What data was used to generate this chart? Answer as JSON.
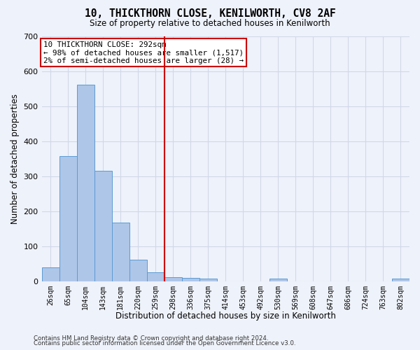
{
  "title": "10, THICKTHORN CLOSE, KENILWORTH, CV8 2AF",
  "subtitle": "Size of property relative to detached houses in Kenilworth",
  "xlabel": "Distribution of detached houses by size in Kenilworth",
  "ylabel": "Number of detached properties",
  "footer_line1": "Contains HM Land Registry data © Crown copyright and database right 2024.",
  "footer_line2": "Contains public sector information licensed under the Open Government Licence v3.0.",
  "bar_labels": [
    "26sqm",
    "65sqm",
    "104sqm",
    "143sqm",
    "181sqm",
    "220sqm",
    "259sqm",
    "298sqm",
    "336sqm",
    "375sqm",
    "414sqm",
    "453sqm",
    "492sqm",
    "530sqm",
    "569sqm",
    "608sqm",
    "647sqm",
    "686sqm",
    "724sqm",
    "763sqm",
    "802sqm"
  ],
  "bar_values": [
    40,
    358,
    562,
    315,
    168,
    62,
    25,
    12,
    10,
    8,
    0,
    0,
    0,
    7,
    0,
    0,
    0,
    0,
    0,
    0,
    7
  ],
  "bar_color": "#aec6e8",
  "bar_edge_color": "#5a9bd4",
  "grid_color": "#d0d8e8",
  "background_color": "#eef2fa",
  "vline_x": 6.5,
  "vline_color": "#cc0000",
  "annotation_line1": "10 THICKTHORN CLOSE: 292sqm",
  "annotation_line2": "← 98% of detached houses are smaller (1,517)",
  "annotation_line3": "2% of semi-detached houses are larger (28) →",
  "annotation_box_color": "#ffffff",
  "annotation_box_edge": "#cc0000",
  "ylim": [
    0,
    700
  ],
  "yticks": [
    0,
    100,
    200,
    300,
    400,
    500,
    600,
    700
  ]
}
